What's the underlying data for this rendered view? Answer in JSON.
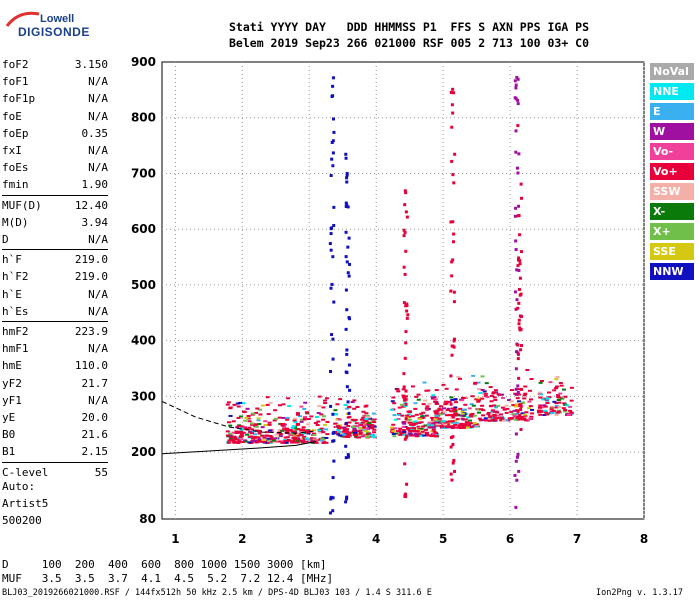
{
  "logo": {
    "top": "Lowell",
    "bottom": "DIGISONDE"
  },
  "header": {
    "line1": "Stati YYYY DAY   DDD HHMMSS P1  FFS S AXN PPS IGA PS",
    "line2": "Belem 2019 Sep23 266 021000 RSF 005 2 713 100 03+ C0"
  },
  "params": [
    {
      "name": "foF2",
      "value": "3.150"
    },
    {
      "name": "foF1",
      "value": "N/A"
    },
    {
      "name": "foF1p",
      "value": "N/A"
    },
    {
      "name": "foE",
      "value": "N/A"
    },
    {
      "name": "foEp",
      "value": "0.35"
    },
    {
      "name": "fxI",
      "value": "N/A"
    },
    {
      "name": "foEs",
      "value": "N/A"
    },
    {
      "name": "fmin",
      "value": "1.90"
    },
    {
      "name": "MUF(D)",
      "value": "12.40"
    },
    {
      "name": "M(D)",
      "value": "3.94"
    },
    {
      "name": "D",
      "value": "N/A"
    },
    {
      "name": "h`F",
      "value": "219.0"
    },
    {
      "name": "h`F2",
      "value": "219.0"
    },
    {
      "name": "h`E",
      "value": "N/A"
    },
    {
      "name": "h`Es",
      "value": "N/A"
    },
    {
      "name": "hmF2",
      "value": "223.9"
    },
    {
      "name": "hmF1",
      "value": "N/A"
    },
    {
      "name": "hmE",
      "value": "110.0"
    },
    {
      "name": "yF2",
      "value": "21.7"
    },
    {
      "name": "yF1",
      "value": "N/A"
    },
    {
      "name": "yE",
      "value": "20.0"
    },
    {
      "name": "B0",
      "value": "21.6"
    },
    {
      "name": "B1",
      "value": "2.15"
    },
    {
      "name": "C-level",
      "value": "55"
    }
  ],
  "auto": {
    "line1": "Auto:",
    "line2": "Artist5",
    "line3": "500200"
  },
  "bottom_table": {
    "row1": "D     100  200  400  600  800 1000 1500 3000 [km]",
    "row2": "MUF   3.5  3.5  3.7  4.1  4.5  5.2  7.2 12.4 [MHz]"
  },
  "footer": {
    "left": "BLJ03_2019266021000.RSF / 144fx512h 50 kHz 2.5 km / DPS-4D BLJ03 103 / 1.4 S 311.6 E",
    "right": "Ion2Png v. 1.3.17"
  },
  "legend": [
    {
      "label": "NoVal",
      "color": "#aaaaaa"
    },
    {
      "label": "NNE",
      "color": "#00e8f0"
    },
    {
      "label": "E",
      "color": "#3ab0f0"
    },
    {
      "label": "W",
      "color": "#a010a0"
    },
    {
      "label": "Vo-",
      "color": "#f0409a"
    },
    {
      "label": "Vo+",
      "color": "#e8003a"
    },
    {
      "label": "SSW",
      "color": "#f4b0a8"
    },
    {
      "label": "X-",
      "color": "#0a7a0a"
    },
    {
      "label": "X+",
      "color": "#6fbf4a"
    },
    {
      "label": "SSE",
      "color": "#d4c810"
    },
    {
      "label": "NNW",
      "color": "#1010c0"
    }
  ],
  "chart_data": {
    "type": "scatter",
    "title": "",
    "xlabel": "",
    "ylabel": "",
    "xlim": [
      0.8,
      8.0
    ],
    "ylim": [
      80,
      900
    ],
    "xticks": [
      1,
      2,
      3,
      4,
      5,
      6,
      7,
      8
    ],
    "yticks": [
      80,
      200,
      300,
      400,
      500,
      600,
      700,
      800,
      900
    ],
    "grid": "dotted",
    "curves": [
      {
        "name": "o-trace",
        "style": "solid",
        "points": [
          [
            0.8,
            197
          ],
          [
            1.5,
            202
          ],
          [
            2.2,
            207
          ],
          [
            2.8,
            212
          ],
          [
            3.1,
            219
          ]
        ]
      },
      {
        "name": "x-trace",
        "style": "dashed",
        "points": [
          [
            0.8,
            291
          ],
          [
            1.3,
            263
          ],
          [
            1.8,
            245
          ],
          [
            2.3,
            236
          ],
          [
            2.8,
            234
          ],
          [
            3.1,
            238
          ]
        ]
      }
    ],
    "echo_clusters": [
      {
        "f": [
          1.75,
          3.25
        ],
        "h": [
          218,
          308
        ],
        "n": 380,
        "dominant": "#e8003a"
      },
      {
        "f": [
          3.35,
          3.95
        ],
        "h": [
          228,
          300
        ],
        "n": 180,
        "dominant": "#e8003a"
      },
      {
        "f": [
          4.2,
          4.9
        ],
        "h": [
          230,
          335
        ],
        "n": 200,
        "dominant": "#e8003a"
      },
      {
        "f": [
          4.8,
          5.5
        ],
        "h": [
          245,
          345
        ],
        "n": 180,
        "dominant": "#e8003a"
      },
      {
        "f": [
          5.5,
          6.3
        ],
        "h": [
          258,
          355
        ],
        "n": 140,
        "dominant": "#e8003a"
      },
      {
        "f": [
          6.4,
          6.9
        ],
        "h": [
          268,
          345
        ],
        "n": 90,
        "dominant": "#e8003a"
      }
    ],
    "vertical_streaks": [
      {
        "f": 3.32,
        "h": [
          90,
          890
        ],
        "color": "#1010c0"
      },
      {
        "f": 3.55,
        "h": [
          90,
          740
        ],
        "color": "#1010c0"
      },
      {
        "f": 6.08,
        "h": [
          100,
          890
        ],
        "color": "#a010a0"
      },
      {
        "f": 6.12,
        "h": [
          240,
          800
        ],
        "color": "#e8003a"
      },
      {
        "f": 5.12,
        "h": [
          150,
          860
        ],
        "color": "#e8003a"
      },
      {
        "f": 4.42,
        "h": [
          120,
          700
        ],
        "color": "#e8003a"
      }
    ]
  }
}
